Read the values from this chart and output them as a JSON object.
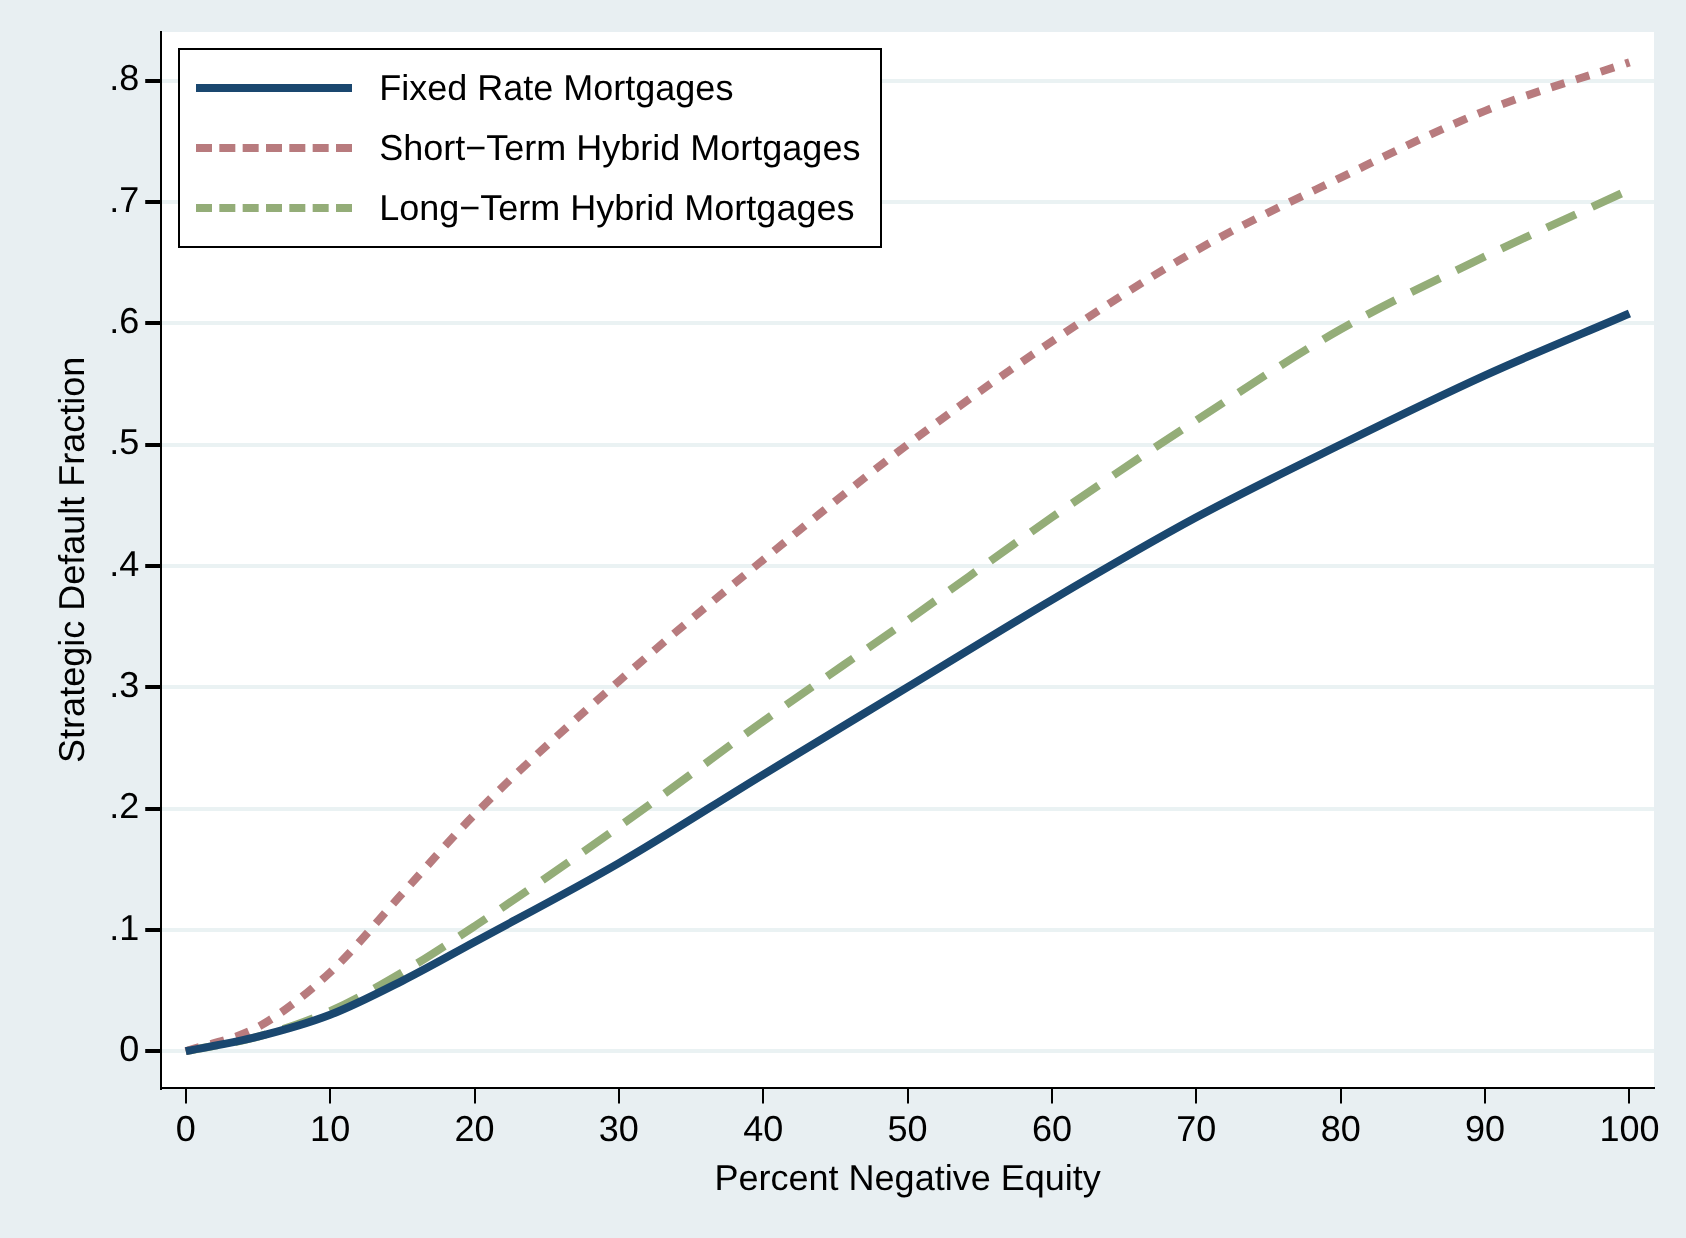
{
  "chart_data": {
    "type": "line",
    "xlabel": "Percent Negative Equity",
    "ylabel": "Strategic Default Fraction",
    "x": [
      0,
      5,
      10,
      15,
      20,
      30,
      40,
      50,
      60,
      70,
      80,
      90,
      100
    ],
    "series": [
      {
        "name": "Fixed Rate Mortgages",
        "color": "#1a476f",
        "line_style": "solid",
        "values": [
          0,
          0.012,
          0.03,
          0.058,
          0.09,
          0.155,
          0.228,
          0.3,
          0.372,
          0.44,
          0.5,
          0.557,
          0.608
        ]
      },
      {
        "name": "Short−Term Hybrid Mortgages",
        "color": "#b87b7e",
        "line_style": "dotted",
        "values": [
          0,
          0.02,
          0.065,
          0.13,
          0.195,
          0.305,
          0.405,
          0.5,
          0.585,
          0.66,
          0.72,
          0.775,
          0.815
        ]
      },
      {
        "name": "Long−Term Hybrid Mortgages",
        "color": "#94ad78",
        "line_style": "dashed",
        "values": [
          0,
          0.012,
          0.033,
          0.065,
          0.103,
          0.185,
          0.272,
          0.355,
          0.44,
          0.52,
          0.595,
          0.655,
          0.71
        ]
      }
    ],
    "xlim": [
      -1.7,
      101.7
    ],
    "xticks": [
      0,
      10,
      20,
      30,
      40,
      50,
      60,
      70,
      80,
      90,
      100
    ],
    "ylim": [
      -0.03,
      0.84
    ],
    "yticks": [
      {
        "value": 0,
        "label": "0"
      },
      {
        "value": 0.1,
        "label": ".1"
      },
      {
        "value": 0.2,
        "label": ".2"
      },
      {
        "value": 0.3,
        "label": ".3"
      },
      {
        "value": 0.4,
        "label": ".4"
      },
      {
        "value": 0.5,
        "label": ".5"
      },
      {
        "value": 0.6,
        "label": ".6"
      },
      {
        "value": 0.7,
        "label": ".7"
      },
      {
        "value": 0.8,
        "label": ".8"
      }
    ],
    "grid": "y",
    "legend": "top left",
    "marker": "none"
  }
}
